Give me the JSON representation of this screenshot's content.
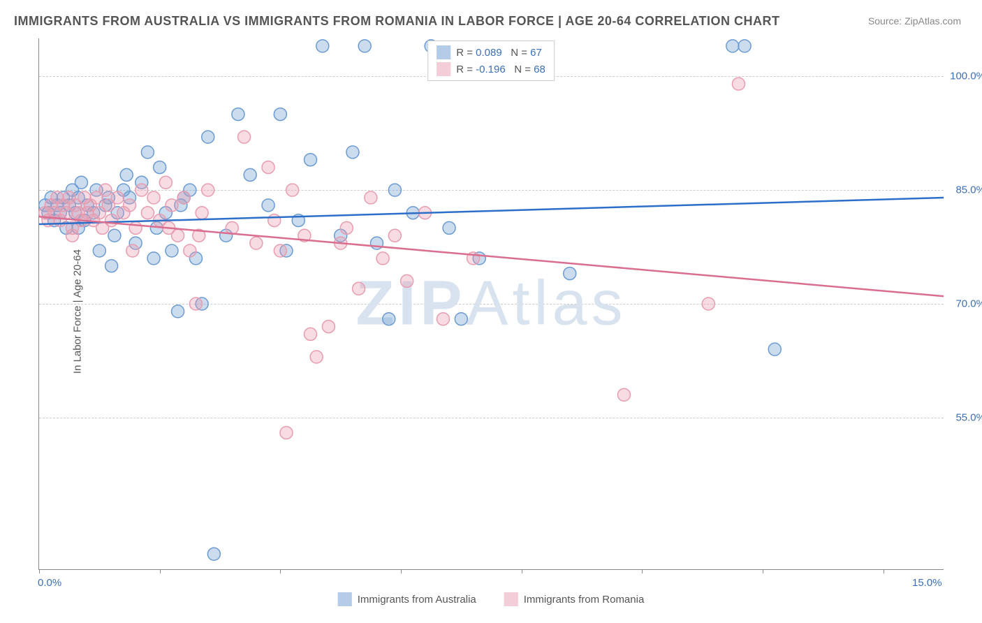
{
  "title": "IMMIGRANTS FROM AUSTRALIA VS IMMIGRANTS FROM ROMANIA IN LABOR FORCE | AGE 20-64 CORRELATION CHART",
  "source": "Source: ZipAtlas.com",
  "watermark_bold": "ZIP",
  "watermark_rest": "Atlas",
  "y_axis_title": "In Labor Force | Age 20-64",
  "chart": {
    "type": "scatter",
    "xlim": [
      0,
      15
    ],
    "ylim": [
      35,
      105
    ],
    "x_ticks_pos": [
      0,
      2,
      4,
      6,
      8,
      10,
      12,
      14
    ],
    "x_tick_labels": {
      "0": "0.0%",
      "15": "15.0%"
    },
    "y_gridlines": [
      55,
      70,
      85,
      100
    ],
    "y_tick_labels": {
      "55": "55.0%",
      "70": "70.0%",
      "85": "85.0%",
      "100": "100.0%"
    },
    "grid_color": "#cccccc",
    "background_color": "#ffffff",
    "marker_radius": 9,
    "marker_fill_opacity": 0.35,
    "marker_stroke_width": 1.5,
    "line_width": 2.5
  },
  "series": [
    {
      "name": "Immigrants from Australia",
      "color": "#6b9bd1",
      "line_color": "#2c6fc9",
      "R": "0.089",
      "N": "67",
      "trend": {
        "x1": 0,
        "y1": 80.5,
        "x2": 15,
        "y2": 84.0
      },
      "points": [
        [
          0.1,
          83
        ],
        [
          0.15,
          82
        ],
        [
          0.2,
          84
        ],
        [
          0.25,
          81
        ],
        [
          0.3,
          83
        ],
        [
          0.35,
          82
        ],
        [
          0.4,
          84
        ],
        [
          0.45,
          80
        ],
        [
          0.5,
          83
        ],
        [
          0.55,
          85
        ],
        [
          0.6,
          82
        ],
        [
          0.65,
          84
        ],
        [
          0.7,
          86
        ],
        [
          0.75,
          81
        ],
        [
          0.8,
          83
        ],
        [
          0.9,
          82
        ],
        [
          1.0,
          77
        ],
        [
          1.1,
          83
        ],
        [
          1.2,
          75
        ],
        [
          1.3,
          82
        ],
        [
          1.4,
          85
        ],
        [
          1.5,
          84
        ],
        [
          1.6,
          78
        ],
        [
          1.7,
          86
        ],
        [
          1.8,
          90
        ],
        [
          1.9,
          76
        ],
        [
          2.0,
          88
        ],
        [
          2.1,
          82
        ],
        [
          2.2,
          77
        ],
        [
          2.3,
          69
        ],
        [
          2.4,
          84
        ],
        [
          2.5,
          85
        ],
        [
          2.6,
          76
        ],
        [
          2.7,
          70
        ],
        [
          2.8,
          92
        ],
        [
          2.9,
          37
        ],
        [
          3.1,
          79
        ],
        [
          3.3,
          95
        ],
        [
          3.5,
          87
        ],
        [
          3.8,
          83
        ],
        [
          4.0,
          95
        ],
        [
          4.1,
          77
        ],
        [
          4.3,
          81
        ],
        [
          4.5,
          89
        ],
        [
          4.7,
          104
        ],
        [
          5.0,
          79
        ],
        [
          5.2,
          90
        ],
        [
          5.4,
          104
        ],
        [
          5.6,
          78
        ],
        [
          5.8,
          68
        ],
        [
          5.9,
          85
        ],
        [
          6.2,
          82
        ],
        [
          6.5,
          104
        ],
        [
          6.8,
          80
        ],
        [
          7.0,
          68
        ],
        [
          7.3,
          76
        ],
        [
          8.8,
          74
        ],
        [
          11.5,
          104
        ],
        [
          11.7,
          104
        ],
        [
          12.2,
          64
        ],
        [
          1.15,
          84
        ],
        [
          1.45,
          87
        ],
        [
          1.95,
          80
        ],
        [
          2.35,
          83
        ],
        [
          0.95,
          85
        ],
        [
          0.65,
          80
        ],
        [
          1.25,
          79
        ]
      ]
    },
    {
      "name": "Immigrants from Romania",
      "color": "#e89cb0",
      "line_color": "#d96e8f",
      "R": "-0.196",
      "N": "68",
      "trend": {
        "x1": 0,
        "y1": 81.5,
        "x2": 15,
        "y2": 71.0
      },
      "points": [
        [
          0.1,
          82
        ],
        [
          0.15,
          81
        ],
        [
          0.2,
          83
        ],
        [
          0.25,
          82
        ],
        [
          0.3,
          84
        ],
        [
          0.35,
          81
        ],
        [
          0.4,
          83
        ],
        [
          0.45,
          82
        ],
        [
          0.5,
          84
        ],
        [
          0.55,
          80
        ],
        [
          0.6,
          83
        ],
        [
          0.65,
          82
        ],
        [
          0.7,
          81
        ],
        [
          0.75,
          84
        ],
        [
          0.8,
          82
        ],
        [
          0.85,
          83
        ],
        [
          0.9,
          81
        ],
        [
          0.95,
          84
        ],
        [
          1.0,
          82
        ],
        [
          1.1,
          85
        ],
        [
          1.15,
          83
        ],
        [
          1.2,
          81
        ],
        [
          1.3,
          84
        ],
        [
          1.4,
          82
        ],
        [
          1.5,
          83
        ],
        [
          1.6,
          80
        ],
        [
          1.7,
          85
        ],
        [
          1.8,
          82
        ],
        [
          1.9,
          84
        ],
        [
          2.0,
          81
        ],
        [
          2.1,
          86
        ],
        [
          2.2,
          83
        ],
        [
          2.3,
          79
        ],
        [
          2.4,
          84
        ],
        [
          2.5,
          77
        ],
        [
          2.6,
          70
        ],
        [
          2.7,
          82
        ],
        [
          2.8,
          85
        ],
        [
          3.2,
          80
        ],
        [
          3.4,
          92
        ],
        [
          3.6,
          78
        ],
        [
          3.8,
          88
        ],
        [
          3.9,
          81
        ],
        [
          4.0,
          77
        ],
        [
          4.1,
          53
        ],
        [
          4.2,
          85
        ],
        [
          4.4,
          79
        ],
        [
          4.5,
          66
        ],
        [
          4.6,
          63
        ],
        [
          4.8,
          67
        ],
        [
          5.0,
          78
        ],
        [
          5.1,
          80
        ],
        [
          5.3,
          72
        ],
        [
          5.5,
          84
        ],
        [
          5.7,
          76
        ],
        [
          5.9,
          79
        ],
        [
          6.1,
          73
        ],
        [
          6.4,
          82
        ],
        [
          6.7,
          68
        ],
        [
          7.2,
          76
        ],
        [
          9.7,
          58
        ],
        [
          11.1,
          70
        ],
        [
          11.6,
          99
        ],
        [
          1.05,
          80
        ],
        [
          1.55,
          77
        ],
        [
          2.15,
          80
        ],
        [
          2.65,
          79
        ],
        [
          0.55,
          79
        ]
      ]
    }
  ],
  "legend_top": {
    "r_prefix": "R = ",
    "n_prefix": "N = "
  },
  "bottom_legend": [
    {
      "label": "Immigrants from Australia",
      "color": "#6b9bd1"
    },
    {
      "label": "Immigrants from Romania",
      "color": "#e89cb0"
    }
  ]
}
